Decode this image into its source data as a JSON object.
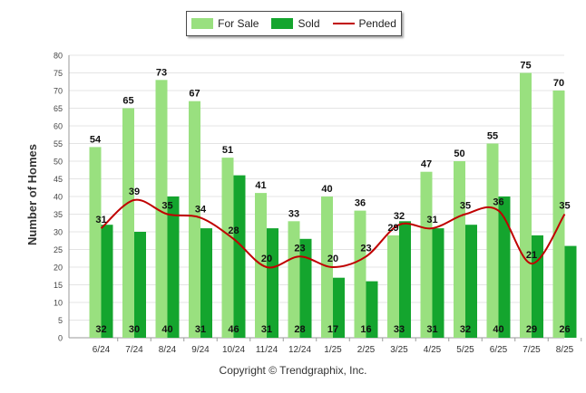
{
  "chart_data": {
    "type": "bar",
    "ylabel": "Number of Homes",
    "ylim": [
      0,
      80
    ],
    "ytick_step": 5,
    "grid": true,
    "legend_position": "top-center",
    "categories": [
      "6/24",
      "7/24",
      "8/24",
      "9/24",
      "10/24",
      "11/24",
      "12/24",
      "1/25",
      "2/25",
      "3/25",
      "4/25",
      "5/25",
      "6/25",
      "7/25",
      "8/25"
    ],
    "series": [
      {
        "name": "For Sale",
        "kind": "bar",
        "color": "#99e07f",
        "values": [
          54,
          65,
          73,
          67,
          51,
          41,
          33,
          40,
          36,
          29,
          47,
          50,
          55,
          75,
          70
        ]
      },
      {
        "name": "Sold",
        "kind": "bar",
        "color": "#14a52e",
        "values": [
          32,
          30,
          40,
          31,
          46,
          31,
          28,
          17,
          16,
          33,
          31,
          32,
          40,
          29,
          26
        ]
      },
      {
        "name": "Pended",
        "kind": "line",
        "color": "#c00000",
        "values": [
          31,
          39,
          35,
          34,
          28,
          20,
          23,
          20,
          23,
          32,
          31,
          35,
          36,
          21,
          35
        ]
      }
    ]
  },
  "footer": "Copyright © Trendgraphix, Inc."
}
